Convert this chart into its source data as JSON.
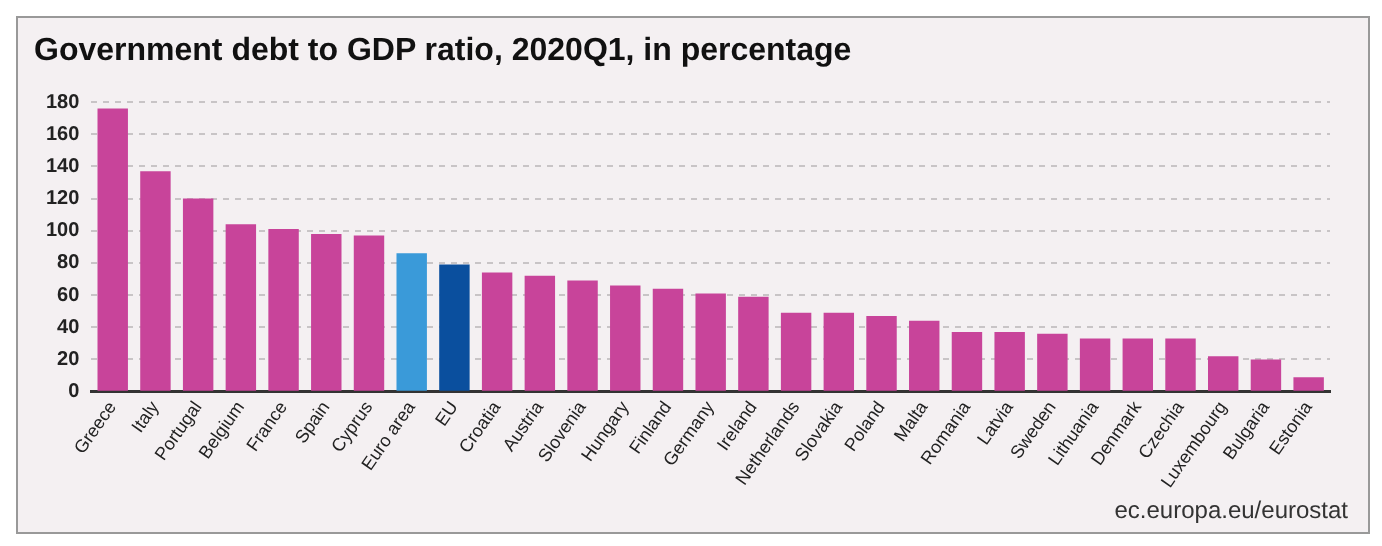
{
  "chart_data": {
    "type": "bar",
    "title": "Government debt to GDP ratio, 2020Q1, in percentage",
    "categories": [
      "Greece",
      "Italy",
      "Portugal",
      "Belgium",
      "France",
      "Spain",
      "Cyprus",
      "Euro area",
      "EU",
      "Croatia",
      "Austria",
      "Slovenia",
      "Hungary",
      "Finland",
      "Germany",
      "Ireland",
      "Netherlands",
      "Slovakia",
      "Poland",
      "Malta",
      "Romania",
      "Latvia",
      "Sweden",
      "Lithuania",
      "Denmark",
      "Czechia",
      "Luxembourg",
      "Bulgaria",
      "Estonia"
    ],
    "values": [
      176,
      137,
      120,
      104,
      101,
      98,
      97,
      86,
      79,
      74,
      72,
      69,
      66,
      64,
      61,
      59,
      49,
      49,
      47,
      44,
      37,
      37,
      36,
      33,
      33,
      33,
      22,
      20,
      9
    ],
    "colors": [
      "#c8449a",
      "#c8449a",
      "#c8449a",
      "#c8449a",
      "#c8449a",
      "#c8449a",
      "#c8449a",
      "#3a9ad9",
      "#0a4f9e",
      "#c8449a",
      "#c8449a",
      "#c8449a",
      "#c8449a",
      "#c8449a",
      "#c8449a",
      "#c8449a",
      "#c8449a",
      "#c8449a",
      "#c8449a",
      "#c8449a",
      "#c8449a",
      "#c8449a",
      "#c8449a",
      "#c8449a",
      "#c8449a",
      "#c8449a",
      "#c8449a",
      "#c8449a",
      "#c8449a"
    ],
    "ylim": [
      0,
      180
    ],
    "yticks": [
      0,
      20,
      40,
      60,
      80,
      100,
      120,
      140,
      160,
      180
    ],
    "grid": "y",
    "annotations": [
      "ec.europa.eu/eurostat"
    ]
  }
}
